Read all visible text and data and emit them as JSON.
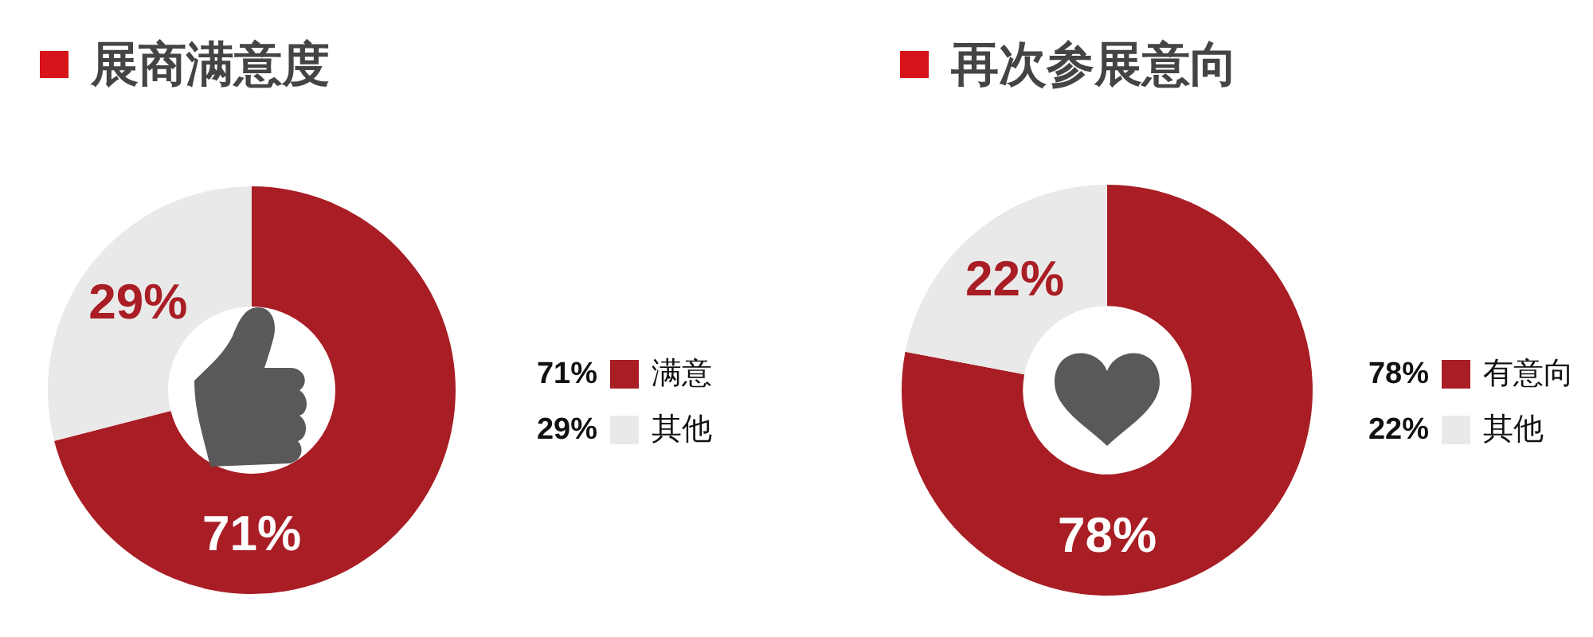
{
  "chart_data": [
    {
      "type": "donut",
      "title": "展商满意度",
      "categories": [
        "满意",
        "其他"
      ],
      "values": [
        71,
        29
      ],
      "colors": [
        "#a91d24",
        "#e9e9e9"
      ],
      "value_labels": [
        "71%",
        "29%"
      ],
      "legend": "right"
    },
    {
      "type": "donut",
      "title": "再次参展意向",
      "categories": [
        "有意向",
        "其他"
      ],
      "values": [
        78,
        22
      ],
      "colors": [
        "#a91d24",
        "#e9e9e9"
      ],
      "value_labels": [
        "78%",
        "22%"
      ],
      "legend": "right"
    }
  ]
}
